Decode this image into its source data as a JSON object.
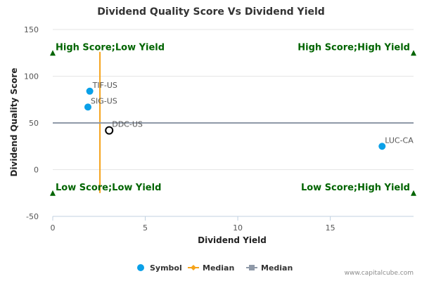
{
  "chart_data": {
    "type": "scatter",
    "title": "Dividend Quality Score Vs Dividend Yield",
    "xlabel": "Dividend Yield",
    "ylabel": "Dividend Quality Score",
    "xlim": [
      0,
      19.5
    ],
    "ylim": [
      -50,
      150
    ],
    "xticks": [
      0,
      5,
      10,
      15
    ],
    "yticks": [
      -50,
      0,
      50,
      100,
      150
    ],
    "grid": "horizontal",
    "series": [
      {
        "name": "Symbol",
        "color": "#0aa0e8",
        "points": [
          {
            "label": "TIF-US",
            "x": 2.0,
            "y": 84
          },
          {
            "label": "SIG-US",
            "x": 1.9,
            "y": 67
          },
          {
            "label": "LUC-CA",
            "x": 17.8,
            "y": 25
          }
        ]
      }
    ],
    "highlight_point": {
      "label": "DDC-US",
      "x": 3.05,
      "y": 42
    },
    "median_lines": [
      {
        "name": "Median",
        "orientation": "vertical",
        "value": 2.55,
        "color": "#f5a31a",
        "range": [
          -25,
          126
        ]
      },
      {
        "name": "Median",
        "orientation": "horizontal",
        "value": 50,
        "color": "#8f99a8",
        "range": [
          0,
          19.5
        ]
      }
    ],
    "quadrant_labels": [
      {
        "text": "High Score;Low Yield",
        "x": 0,
        "y": 125,
        "anchor": "start"
      },
      {
        "text": "High Score;High Yield",
        "x": 19.5,
        "y": 125,
        "anchor": "end"
      },
      {
        "text": "Low Score;Low Yield",
        "x": 0,
        "y": -25,
        "anchor": "start"
      },
      {
        "text": "Low Score;High Yield",
        "x": 19.5,
        "y": -25,
        "anchor": "end"
      }
    ],
    "quadrant_color": "#006400",
    "legend": {
      "position": "bottom",
      "items": [
        {
          "label": "Symbol",
          "marker": "circle",
          "color": "#0aa0e8"
        },
        {
          "label": "Median",
          "marker": "line-diamond",
          "color": "#f5a31a"
        },
        {
          "label": "Median",
          "marker": "line-square",
          "color": "#8f99a8"
        }
      ]
    }
  },
  "footer": {
    "credit": "www.capitalcube.com"
  }
}
